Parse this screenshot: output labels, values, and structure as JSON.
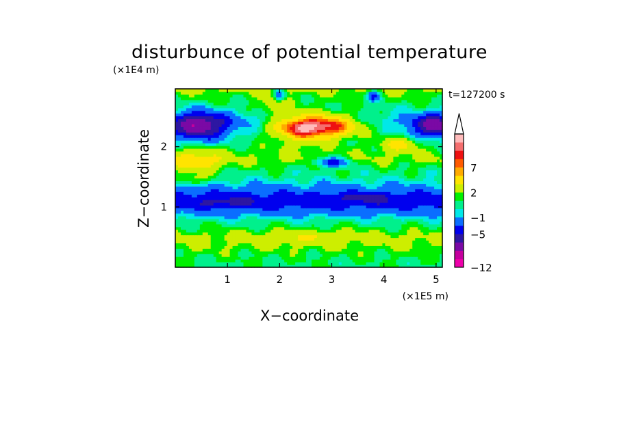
{
  "chart_data": {
    "type": "heatmap",
    "title": "disturbunce of potential temperature",
    "xlabel": "X−coordinate",
    "ylabel": "Z−coordinate",
    "x_unit": "(×1E5 m)",
    "y_unit": "(×1E4 m)",
    "time_label": "t=127200 s",
    "xlim": [
      0,
      5.12
    ],
    "ylim": [
      0,
      2.96
    ],
    "x_ticks": [
      "1",
      "2",
      "3",
      "4",
      "5"
    ],
    "y_ticks": [
      "1",
      "2"
    ],
    "colorbar": {
      "levels": [
        -12,
        -11,
        -9,
        -7,
        -5,
        -3,
        -1,
        0,
        1,
        2,
        4,
        6,
        7,
        8,
        9,
        10
      ],
      "colors": [
        "#ee00aa",
        "#c5009e",
        "#7a09a5",
        "#2d17a2",
        "#0000ee",
        "#0a6eff",
        "#00e8e8",
        "#00f08c",
        "#00f000",
        "#cdee00",
        "#ffe400",
        "#ffaa00",
        "#ff5a00",
        "#ee1111",
        "#f56e6e",
        "#ffbbbb"
      ],
      "labels": [
        "−12",
        "−5",
        "−1",
        "2",
        "7"
      ],
      "extend": "max"
    },
    "bands": [
      {
        "z": 0.05,
        "value": 0.8
      },
      {
        "z": 0.2,
        "value": 1.2
      },
      {
        "z": 0.35,
        "value": 2.0
      },
      {
        "z": 0.5,
        "value": 2.5
      },
      {
        "z": 0.62,
        "value": 1.5
      },
      {
        "z": 0.75,
        "value": 0.5
      },
      {
        "z": 0.9,
        "value": -1.5
      },
      {
        "z": 1.05,
        "value": -4.0
      },
      {
        "z": 1.2,
        "value": -3.5
      },
      {
        "z": 1.35,
        "value": -1.2
      },
      {
        "z": 1.5,
        "value": 0.3
      },
      {
        "z": 1.65,
        "value": 1.0
      },
      {
        "z": 1.8,
        "value": 2.2
      },
      {
        "z": 1.95,
        "value": 1.5
      },
      {
        "z": 2.1,
        "value": 0.5
      },
      {
        "z": 2.25,
        "value": 0.0
      },
      {
        "z": 2.45,
        "value": -1.0
      },
      {
        "z": 2.65,
        "value": 0.5
      },
      {
        "z": 2.85,
        "value": 1.5
      },
      {
        "z": 2.96,
        "value": 2.5
      }
    ],
    "features": [
      {
        "x": 0.45,
        "z": 2.35,
        "amplitude": -8.5,
        "sx": 0.55,
        "sz": 0.22
      },
      {
        "x": 5.0,
        "z": 2.35,
        "amplitude": -8.0,
        "sx": 0.45,
        "sz": 0.18
      },
      {
        "x": 2.8,
        "z": 2.35,
        "amplitude": 9.5,
        "sx": 0.75,
        "sz": 0.2
      },
      {
        "x": 2.3,
        "z": 2.3,
        "amplitude": 3.5,
        "sx": 0.5,
        "sz": 0.25
      },
      {
        "x": 3.0,
        "z": 1.75,
        "amplitude": -5.0,
        "sx": 0.35,
        "sz": 0.08
      },
      {
        "x": 0.4,
        "z": 1.75,
        "amplitude": 4.0,
        "sx": 0.5,
        "sz": 0.18
      },
      {
        "x": 1.9,
        "z": 2.7,
        "amplitude": 2.5,
        "sx": 0.3,
        "sz": 0.15
      },
      {
        "x": 2.0,
        "z": 2.85,
        "amplitude": -5.0,
        "sx": 0.1,
        "sz": 0.1
      },
      {
        "x": 3.8,
        "z": 2.85,
        "amplitude": -5.0,
        "sx": 0.12,
        "sz": 0.08
      },
      {
        "x": 4.3,
        "z": 2.05,
        "amplitude": 4.0,
        "sx": 0.35,
        "sz": 0.12
      },
      {
        "x": 1.0,
        "z": 1.1,
        "amplitude": -2.0,
        "sx": 0.6,
        "sz": 0.08
      },
      {
        "x": 3.6,
        "z": 1.15,
        "amplitude": -2.5,
        "sx": 0.6,
        "sz": 0.07
      },
      {
        "x": 2.6,
        "z": 0.5,
        "amplitude": 1.5,
        "sx": 0.9,
        "sz": 0.12
      },
      {
        "x": 0.3,
        "z": 1.45,
        "amplitude": 2.5,
        "sx": 0.3,
        "sz": 0.08
      }
    ]
  }
}
